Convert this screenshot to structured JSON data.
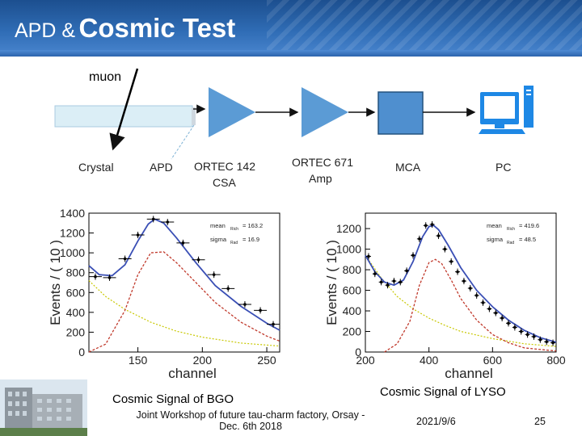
{
  "slide": {
    "title_part1": "APD &",
    "title_part2": "Cosmic Test",
    "colors": {
      "header": "#2f6cb5",
      "shape_blue": "#5b9bd5",
      "crystal": "#dbeef6"
    }
  },
  "diagram": {
    "muon_label": "muon",
    "labels": {
      "crystal": "Crystal",
      "apd": "APD",
      "csa_line1": "ORTEC 142",
      "csa_line2": "CSA",
      "amp_line1": "ORTEC 671",
      "amp_line2": "Amp",
      "mca": "MCA",
      "pc": "PC"
    },
    "icons": [
      "arrow-icon",
      "amplifier-triangle-icon",
      "computer-icon"
    ]
  },
  "captions": {
    "bgo": "Cosmic Signal of BGO",
    "lyso": "Cosmic Signal of LYSO"
  },
  "footer": {
    "conference_line1": "Joint Workshop of future tau-charm factory, Orsay -",
    "conference_line2": "Dec. 6th 2018",
    "date": "2021/9/6",
    "page": "25"
  },
  "chart_data": [
    {
      "type": "scatter",
      "title": "",
      "xlabel": "channel",
      "ylabel": "Events / ( 10 )",
      "xlim": [
        112,
        260
      ],
      "ylim": [
        0,
        1400
      ],
      "xticks": [
        "150",
        "200",
        "250"
      ],
      "yticks": [
        "0",
        "200",
        "400",
        "600",
        "800",
        "1000",
        "1200",
        "1400"
      ],
      "fit_params": [
        {
          "name": "mean",
          "sub": "Rich",
          "value": "= 163.2"
        },
        {
          "name": "sigma",
          "sub": "Rad",
          "value": "= 16.9"
        }
      ],
      "x": [
        117,
        128,
        140,
        150,
        162,
        173,
        185,
        197,
        209,
        220,
        233,
        245,
        255
      ],
      "y": [
        760,
        750,
        940,
        1180,
        1340,
        1310,
        1100,
        930,
        780,
        640,
        480,
        420,
        280
      ],
      "fit": {
        "x": [
          112,
          120,
          130,
          140,
          150,
          158,
          163,
          170,
          180,
          195,
          210,
          230,
          250,
          260
        ],
        "y": [
          870,
          780,
          770,
          880,
          1120,
          1290,
          1340,
          1300,
          1150,
          900,
          670,
          460,
          290,
          220
        ]
      },
      "signal": {
        "x": [
          112,
          125,
          140,
          150,
          160,
          170,
          180,
          195,
          210,
          230,
          250,
          260
        ],
        "y": [
          0,
          80,
          420,
          780,
          1000,
          1010,
          900,
          700,
          500,
          300,
          160,
          110
        ]
      },
      "background": {
        "x": [
          112,
          125,
          140,
          160,
          180,
          200,
          230,
          260
        ],
        "y": [
          720,
          560,
          430,
          300,
          210,
          150,
          90,
          60
        ]
      }
    },
    {
      "type": "scatter",
      "title": "",
      "xlabel": "channel",
      "ylabel": "Events / ( 10 )",
      "xlim": [
        200,
        800
      ],
      "ylim": [
        0,
        1350
      ],
      "xticks": [
        "200",
        "400",
        "600",
        "800"
      ],
      "yticks": [
        "0",
        "200",
        "400",
        "600",
        "800",
        "1000",
        "1200"
      ],
      "fit_params": [
        {
          "name": "mean",
          "sub": "Rich",
          "value": "= 419.6"
        },
        {
          "name": "sigma",
          "sub": "Rad",
          "value": "= 48.5"
        }
      ],
      "x": [
        210,
        230,
        250,
        270,
        290,
        310,
        330,
        350,
        370,
        390,
        410,
        430,
        450,
        470,
        490,
        510,
        530,
        550,
        570,
        590,
        610,
        630,
        650,
        670,
        690,
        710,
        730,
        750,
        770,
        790
      ],
      "y": [
        930,
        760,
        680,
        650,
        690,
        680,
        790,
        940,
        1100,
        1230,
        1240,
        1130,
        1000,
        880,
        780,
        690,
        620,
        550,
        480,
        420,
        380,
        330,
        280,
        240,
        200,
        170,
        150,
        120,
        100,
        90
      ],
      "fit": {
        "x": [
          200,
          230,
          260,
          290,
          320,
          350,
          380,
          400,
          415,
          430,
          460,
          500,
          550,
          600,
          650,
          700,
          750,
          800
        ],
        "y": [
          940,
          780,
          680,
          650,
          700,
          880,
          1120,
          1220,
          1230,
          1190,
          1040,
          820,
          600,
          440,
          310,
          210,
          140,
          95
        ]
      },
      "signal": {
        "x": [
          260,
          300,
          340,
          370,
          400,
          420,
          440,
          470,
          500,
          550,
          600,
          650,
          700,
          800
        ],
        "y": [
          0,
          80,
          300,
          650,
          870,
          900,
          860,
          700,
          520,
          310,
          170,
          90,
          40,
          10
        ]
      },
      "background": {
        "x": [
          200,
          250,
          300,
          350,
          400,
          450,
          500,
          600,
          700,
          800
        ],
        "y": [
          940,
          720,
          540,
          420,
          330,
          260,
          200,
          130,
          80,
          55
        ]
      }
    }
  ]
}
